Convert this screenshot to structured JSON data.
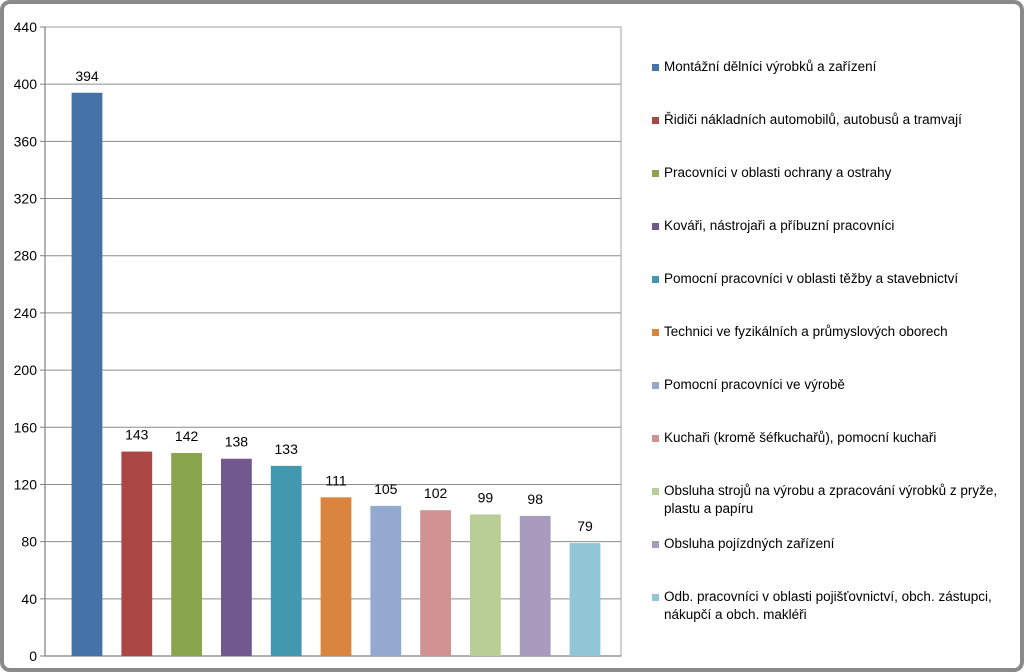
{
  "chart_data": {
    "type": "bar",
    "ylim": [
      0,
      440
    ],
    "yticks": [
      0,
      40,
      80,
      120,
      160,
      200,
      240,
      280,
      320,
      360,
      400,
      440
    ],
    "grid": true,
    "legend_position": "right",
    "categories": [
      "Montážní dělníci výrobků a zařízení",
      "Řidiči nákladních automobilů, autobusů a tramvají",
      "Pracovníci v oblasti ochrany a ostrahy",
      "Kováři, nástrojaři a příbuzní pracovníci",
      "Pomocní pracovníci v oblasti těžby a stavebnictví",
      "Technici ve fyzikálních a průmyslových oborech",
      "Pomocní pracovníci ve výrobě",
      "Kuchaři (kromě šéfkuchařů), pomocní kuchaři",
      "Obsluha strojů na výrobu a zpracování výrobků z pryže, plastu a papíru",
      "Obsluha pojízdných zařízení",
      "Odb. pracovníci v oblasti pojišťovnictví, obch. zástupci, nákupčí a obch. makléři"
    ],
    "legend_lines": [
      [
        "Montážní dělníci výrobků a zařízení"
      ],
      [
        "Řidiči nákladních automobilů, autobusů a tramvají"
      ],
      [
        "Pracovníci v oblasti ochrany a ostrahy"
      ],
      [
        "Kováři, nástrojaři a příbuzní pracovníci"
      ],
      [
        "Pomocní pracovníci v oblasti těžby a stavebnictví"
      ],
      [
        "Technici ve fyzikálních a průmyslových oborech"
      ],
      [
        "Pomocní pracovníci ve výrobě"
      ],
      [
        "Kuchaři (kromě šéfkuchařů), pomocní kuchaři"
      ],
      [
        "Obsluha strojů na výrobu a zpracování výrobků z pryže,",
        "plastu a papíru"
      ],
      [
        "Obsluha pojízdných zařízení"
      ],
      [
        "Odb. pracovníci v oblasti pojišťovnictví, obch. zástupci,",
        "nákupčí a obch. makléři"
      ]
    ],
    "values": [
      394,
      143,
      142,
      138,
      133,
      111,
      105,
      102,
      99,
      98,
      79
    ],
    "colors": [
      "#4572a7",
      "#aa4643",
      "#89a54e",
      "#71588f",
      "#4198af",
      "#db843d",
      "#93a9cf",
      "#d19392",
      "#b9cd96",
      "#a99bbd",
      "#92c5d6"
    ]
  }
}
